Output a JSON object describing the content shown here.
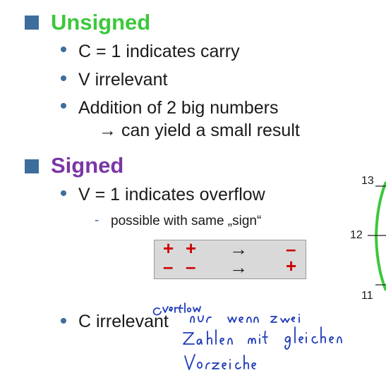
{
  "colors": {
    "accent_bullet": "#3d6d9c",
    "unsigned_heading": "#3cc83c",
    "signed_heading": "#7a36a6",
    "sign_red": "#cc0000",
    "handwriting": "#1f3bb8",
    "circle_green": "#3cc83c",
    "table_bg": "#d9d9d9"
  },
  "unsigned": {
    "heading": "Unsigned",
    "items": [
      "C = 1 indicates carry",
      "V irrelevant",
      "Addition of 2 big numbers",
      "→ can yield a small result"
    ]
  },
  "signed": {
    "heading": "Signed",
    "item_overflow": "V = 1 indicates overflow",
    "sub_item": "possible with same „sign“",
    "sign_table": {
      "rows": [
        {
          "a": "+",
          "b": "+",
          "arrow": "→",
          "result": "–"
        },
        {
          "a": "–",
          "b": "–",
          "arrow": "→",
          "result": "+"
        }
      ]
    },
    "item_c": "C irrelevant"
  },
  "diagram_labels": [
    "13",
    "12",
    "11"
  ],
  "handwritten_note": "Overflow nur wenn zwei Zahlen mit gleichen Vorzeichen"
}
